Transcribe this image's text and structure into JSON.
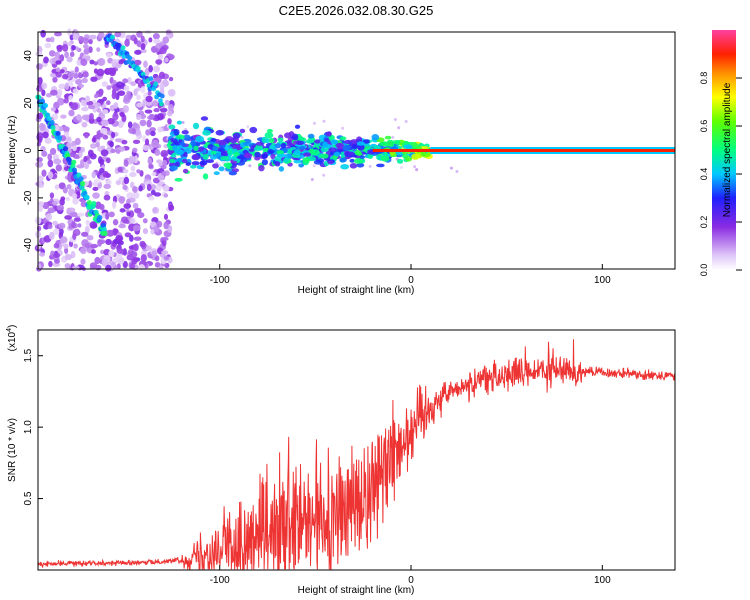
{
  "title": "C2E5.2026.032.08.30.G25",
  "chart_data": [
    {
      "type": "heatmap",
      "title": "C2E5.2026.032.08.30.G25",
      "xlabel": "Height of straight line (km)",
      "ylabel": "Frequency (Hz)",
      "xlim": [
        -195,
        138
      ],
      "ylim": [
        -50,
        50
      ],
      "x_ticks": [
        -100,
        0,
        100
      ],
      "x_tick_labels": [
        "-100",
        "0",
        "100"
      ],
      "y_ticks": [
        -40,
        -20,
        0,
        20,
        40
      ],
      "y_tick_labels": [
        "-40",
        "-20",
        "0",
        "20",
        "40"
      ],
      "colorbar": {
        "label": "Normalized spectral amplitude",
        "range": [
          0,
          1
        ],
        "ticks": [
          0.0,
          0.2,
          0.4,
          0.6,
          0.8
        ],
        "tick_labels": [
          "0.0",
          "0.2",
          "0.4",
          "0.6",
          "0.8"
        ]
      },
      "features": [
        {
          "name": "descending ionospheric trace",
          "from": [
            -195,
            22
          ],
          "to": [
            -160,
            -35
          ]
        },
        {
          "name": "upper trace",
          "from": [
            -160,
            50
          ],
          "to": [
            -130,
            22
          ]
        },
        {
          "name": "carrier line",
          "x_range": [
            -125,
            138
          ],
          "freq": 0
        }
      ]
    },
    {
      "type": "line",
      "title": "",
      "xlabel": "Height of straight line (km)",
      "ylabel": "SNR (10 * v/v)",
      "y_scale_label": "(x10",
      "y_scale_exponent": "4",
      "xlim": [
        -195,
        138
      ],
      "ylim": [
        0,
        1.68
      ],
      "x_ticks": [
        -100,
        0,
        100
      ],
      "x_tick_labels": [
        "-100",
        "0",
        "100"
      ],
      "y_ticks": [
        0.5,
        1.0,
        1.5
      ],
      "y_tick_labels": [
        "0.5",
        "1.0",
        "1.5"
      ],
      "color": "#ee3333",
      "series": [
        {
          "name": "SNR",
          "x": [
            -195,
            -170,
            -140,
            -120,
            -100,
            -80,
            -60,
            -40,
            -30,
            -20,
            -10,
            0,
            10,
            20,
            30,
            40,
            60,
            80,
            100,
            120,
            138
          ],
          "y": [
            0.04,
            0.05,
            0.05,
            0.07,
            0.15,
            0.2,
            0.28,
            0.35,
            0.45,
            0.6,
            0.8,
            1.0,
            1.15,
            1.25,
            1.3,
            1.35,
            1.38,
            1.4,
            1.38,
            1.37,
            1.36
          ]
        }
      ]
    }
  ]
}
